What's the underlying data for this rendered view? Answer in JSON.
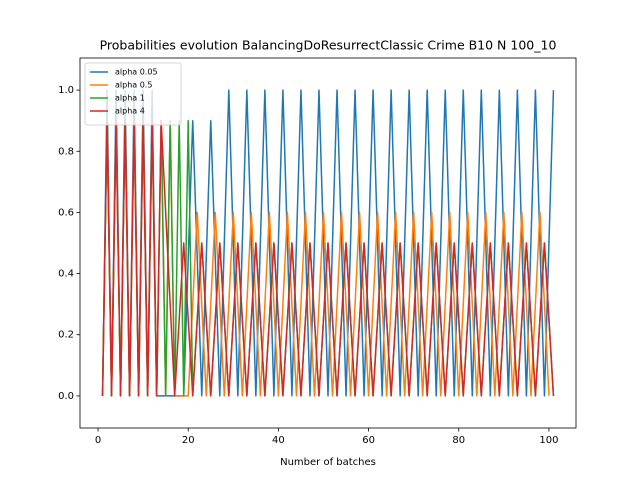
{
  "chart_data": {
    "type": "line",
    "title": "Probabilities evolution BalancingDoResurrectClassic Crime B10 N 100_10",
    "xlabel": "Number of batches",
    "xlim": [
      -4,
      106
    ],
    "ylim": [
      -0.105,
      1.105
    ],
    "xticks": [
      0,
      20,
      40,
      60,
      80,
      100
    ],
    "yticks": [
      {
        "value": 0,
        "label": "0.0"
      },
      {
        "value": 0.2,
        "label": "0.2"
      },
      {
        "value": 0.4,
        "label": "0.4"
      },
      {
        "value": 0.6,
        "label": "0.6"
      },
      {
        "value": 0.8,
        "label": "0.8"
      },
      {
        "value": 1,
        "label": "1.0"
      }
    ],
    "grid": false,
    "legend": "upper left",
    "series": [
      {
        "name": "alpha 0.05",
        "color": "#1f77b4",
        "x": [
          1,
          2,
          3,
          4,
          5,
          6,
          7,
          8,
          9,
          10,
          11,
          12,
          13,
          19,
          21,
          23,
          25,
          27,
          29,
          31,
          33,
          35,
          37,
          39,
          41,
          43,
          45,
          47,
          49,
          51,
          53,
          55,
          57,
          59,
          61,
          63,
          65,
          67,
          69,
          71,
          73,
          75,
          77,
          79,
          81,
          83,
          85,
          87,
          89,
          91,
          93,
          95,
          97,
          99,
          101
        ],
        "values": [
          0,
          1,
          0,
          1,
          0,
          1,
          0,
          1,
          0,
          1,
          0,
          1,
          0,
          0,
          0.9,
          0,
          0.9,
          0,
          1,
          0,
          1,
          0,
          1,
          0,
          1,
          0,
          1,
          0,
          1,
          0,
          1,
          0,
          1,
          0,
          1,
          0,
          1,
          0,
          1,
          0,
          1,
          0,
          1,
          0,
          1,
          0,
          1,
          0,
          1,
          0,
          1,
          0,
          1,
          0,
          1
        ]
      },
      {
        "name": "alpha 0.5",
        "color": "#ff7f0e",
        "x": [
          1,
          2,
          3,
          4,
          5,
          6,
          7,
          8,
          9,
          10,
          11,
          12,
          13,
          14,
          15,
          16,
          17,
          20,
          22,
          24,
          26,
          28,
          30,
          32,
          34,
          36,
          38,
          40,
          42,
          44,
          46,
          48,
          50,
          52,
          54,
          56,
          58,
          60,
          62,
          64,
          66,
          68,
          70,
          72,
          74,
          76,
          78,
          80,
          82,
          84,
          86,
          88,
          90,
          92,
          94,
          96,
          98,
          100
        ],
        "values": [
          0,
          0.9,
          0,
          0.9,
          0,
          0.9,
          0,
          0.9,
          0,
          0.9,
          0,
          0.9,
          0,
          0.9,
          0,
          0.9,
          0,
          0,
          0.6,
          0,
          0.6,
          0,
          0.6,
          0,
          0.6,
          0,
          0.6,
          0,
          0.6,
          0,
          0.6,
          0,
          0.6,
          0,
          0.6,
          0,
          0.6,
          0,
          0.6,
          0,
          0.6,
          0,
          0.6,
          0,
          0.6,
          0,
          0.6,
          0,
          0.6,
          0,
          0.6,
          0,
          0.6,
          0,
          0.6,
          0,
          0.6,
          0
        ]
      },
      {
        "name": "alpha 1",
        "color": "#2ca02c",
        "x": [
          1,
          2,
          3,
          4,
          5,
          6,
          7,
          8,
          9,
          10,
          11,
          12,
          13,
          14,
          15,
          16,
          17,
          18,
          19,
          20,
          21,
          23,
          25,
          27,
          29,
          31,
          33,
          35,
          37,
          39,
          41,
          43,
          45,
          47,
          49,
          51,
          53,
          55,
          57,
          59,
          61,
          63,
          65,
          67,
          69,
          71,
          73,
          75,
          77,
          79,
          81,
          83,
          85,
          87,
          89,
          91,
          93,
          95,
          97,
          99,
          101
        ],
        "values": [
          0,
          0.9,
          0,
          0.9,
          0,
          0.9,
          0,
          0.9,
          0,
          0.9,
          0,
          0.9,
          0,
          0.9,
          0,
          0.9,
          0,
          0.9,
          0,
          0.9,
          0,
          0.5,
          0,
          0.5,
          0,
          0.5,
          0,
          0.5,
          0,
          0.5,
          0,
          0.5,
          0,
          0.5,
          0,
          0.5,
          0,
          0.5,
          0,
          0.5,
          0,
          0.5,
          0,
          0.5,
          0,
          0.5,
          0,
          0.5,
          0,
          0.5,
          0,
          0.5,
          0,
          0.5,
          0,
          0.5,
          0,
          0.5,
          0,
          0.5,
          0
        ]
      },
      {
        "name": "alpha 4",
        "color": "#d62728",
        "x": [
          1,
          2,
          3,
          4,
          5,
          6,
          7,
          8,
          9,
          10,
          11,
          12,
          13,
          14,
          17,
          19,
          21,
          23,
          25,
          27,
          29,
          31,
          33,
          35,
          37,
          39,
          41,
          43,
          45,
          47,
          49,
          51,
          53,
          55,
          57,
          59,
          61,
          63,
          65,
          67,
          69,
          71,
          73,
          75,
          77,
          79,
          81,
          83,
          85,
          87,
          89,
          91,
          93,
          95,
          97,
          99,
          101
        ],
        "values": [
          0,
          0.9,
          0,
          0.9,
          0,
          0.9,
          0,
          0.9,
          0,
          0.9,
          0,
          0.9,
          0,
          0.9,
          0,
          0.5,
          0,
          0.5,
          0,
          0.5,
          0,
          0.5,
          0,
          0.5,
          0,
          0.5,
          0,
          0.5,
          0,
          0.5,
          0,
          0.5,
          0,
          0.5,
          0,
          0.5,
          0,
          0.5,
          0,
          0.5,
          0,
          0.5,
          0,
          0.5,
          0,
          0.5,
          0,
          0.5,
          0,
          0.5,
          0,
          0.5,
          0,
          0.5,
          0,
          0.5,
          0
        ]
      }
    ]
  }
}
